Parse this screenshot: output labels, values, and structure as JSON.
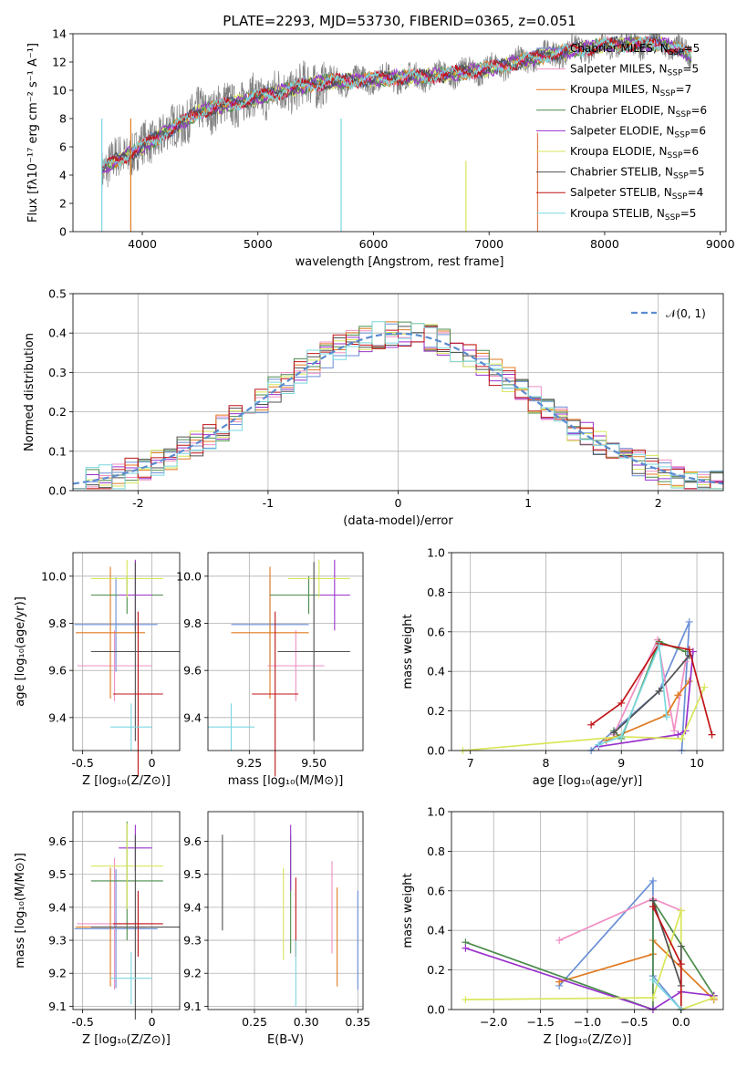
{
  "colors": [
    "#6a8fd6",
    "#f08fc4",
    "#e07a20",
    "#4c8c4c",
    "#9932cc",
    "#d8e65a",
    "#505050",
    "#c01418",
    "#7ad8e0"
  ],
  "chart_data": [
    {
      "id": "spectrum",
      "type": "line",
      "title": "PLATE=2293, MJD=53730, FIBERID=0365, z=0.051",
      "xlabel": "wavelength [Angstrom, rest frame]",
      "ylabel": "Flux [fλ10⁻¹⁷ erg cm⁻² s⁻¹ A⁻¹]",
      "xlim": [
        3400,
        9050
      ],
      "ylim": [
        0,
        14
      ],
      "xticks": [
        4000,
        5000,
        6000,
        7000,
        8000,
        9000
      ],
      "yticks": [
        0,
        2,
        4,
        6,
        8,
        10,
        12,
        14
      ],
      "data_envelope": {
        "x": [
          3650,
          4000,
          4500,
          5000,
          5500,
          6000,
          6500,
          7000,
          7500,
          8000,
          8500,
          8750
        ],
        "y": [
          4.5,
          6.0,
          8.5,
          9.5,
          10.5,
          10.8,
          11.0,
          11.5,
          12.5,
          13.2,
          13.3,
          12.5
        ]
      },
      "legend": [
        {
          "label": "Chabrier MILES, N",
          "sub": "SSP",
          "tail": "=5"
        },
        {
          "label": "Salpeter MILES, N",
          "sub": "SSP",
          "tail": "=5"
        },
        {
          "label": "Kroupa MILES, N",
          "sub": "SSP",
          "tail": "=7"
        },
        {
          "label": "Chabrier ELODIE, N",
          "sub": "SSP",
          "tail": "=6"
        },
        {
          "label": "Salpeter ELODIE, N",
          "sub": "SSP",
          "tail": "=6"
        },
        {
          "label": "Kroupa ELODIE, N",
          "sub": "SSP",
          "tail": "=6"
        },
        {
          "label": "Chabrier STELIB, N",
          "sub": "SSP",
          "tail": "=5"
        },
        {
          "label": "Salpeter STELIB, N",
          "sub": "SSP",
          "tail": "=4"
        },
        {
          "label": "Kroupa STELIB, N",
          "sub": "SSP",
          "tail": "=5"
        }
      ]
    },
    {
      "id": "residuals",
      "type": "histogram",
      "xlabel": "(data-model)/error",
      "ylabel": "Normed distribution",
      "xlim": [
        -2.5,
        2.5
      ],
      "ylim": [
        0,
        0.5
      ],
      "xticks": [
        -2,
        -1,
        0,
        1,
        2
      ],
      "yticks": [
        0.0,
        0.1,
        0.2,
        0.3,
        0.4,
        0.5
      ],
      "bins": 50,
      "legend": "𝒩(0, 1)",
      "gaussian": {
        "mu": 0,
        "sigma": 1
      }
    },
    {
      "id": "age_vs_Z",
      "type": "errorbar",
      "xlabel": "Z [log₁₀(Z/Z⊙)]",
      "ylabel": "age  [log₁₀(age/yr)]",
      "xlim": [
        -0.57,
        0.2
      ],
      "ylim": [
        9.26,
        10.1
      ],
      "xticks": [
        -0.5,
        0.0
      ],
      "yticks": [
        9.4,
        9.6,
        9.8,
        10.0
      ],
      "points": [
        {
          "x": -0.26,
          "xerr": 0.3,
          "y": 9.795,
          "yerr": 0.2
        },
        {
          "x": -0.27,
          "xerr": 0.27,
          "y": 9.62,
          "yerr": 0.15
        },
        {
          "x": -0.3,
          "xerr": 0.25,
          "y": 9.76,
          "yerr": 0.28
        },
        {
          "x": -0.18,
          "xerr": 0.26,
          "y": 9.92,
          "yerr": 0.08
        },
        {
          "x": -0.12,
          "xerr": 0.12,
          "y": 9.92,
          "yerr": 0.15
        },
        {
          "x": -0.18,
          "xerr": 0.26,
          "y": 9.99,
          "yerr": 0.08
        },
        {
          "x": -0.12,
          "xerr": 0.32,
          "y": 9.68,
          "yerr": 0.38
        },
        {
          "x": -0.1,
          "xerr": 0.18,
          "y": 9.5,
          "yerr": 0.35
        },
        {
          "x": -0.15,
          "xerr": 0.15,
          "y": 9.36,
          "yerr": 0.1
        }
      ]
    },
    {
      "id": "age_vs_mass",
      "type": "errorbar",
      "xlabel": "mass [log₁₀(M/M⊙)]",
      "ylabel": "",
      "xlim": [
        9.09,
        9.69
      ],
      "ylim": [
        9.26,
        10.1
      ],
      "xticks": [
        9.25,
        9.5
      ],
      "xticklabels": [
        "9.25",
        "9.50"
      ],
      "yticks": [
        9.4,
        9.6,
        9.8,
        10.0
      ],
      "points": [
        {
          "x": 9.33,
          "xerr": 0.15,
          "y": 9.795,
          "yerr": 0.2
        },
        {
          "x": 9.43,
          "xerr": 0.11,
          "y": 9.62,
          "yerr": 0.15
        },
        {
          "x": 9.33,
          "xerr": 0.15,
          "y": 9.76,
          "yerr": 0.28
        },
        {
          "x": 9.48,
          "xerr": 0.15,
          "y": 9.92,
          "yerr": 0.08
        },
        {
          "x": 9.58,
          "xerr": 0.06,
          "y": 9.92,
          "yerr": 0.15
        },
        {
          "x": 9.52,
          "xerr": 0.12,
          "y": 9.99,
          "yerr": 0.08
        },
        {
          "x": 9.5,
          "xerr": 0.14,
          "y": 9.68,
          "yerr": 0.38
        },
        {
          "x": 9.35,
          "xerr": 0.09,
          "y": 9.5,
          "yerr": 0.35
        },
        {
          "x": 9.18,
          "xerr": 0.09,
          "y": 9.36,
          "yerr": 0.1
        }
      ]
    },
    {
      "id": "weight_vs_age",
      "type": "line",
      "xlabel": "age  [log₁₀(age/yr)]",
      "ylabel": "mass weight",
      "xlim": [
        6.75,
        10.35
      ],
      "ylim": [
        0,
        1
      ],
      "xticks": [
        7,
        8,
        9,
        10
      ],
      "yticks": [
        0.0,
        0.2,
        0.4,
        0.6,
        0.8,
        1.0
      ],
      "series": [
        {
          "x": [
            8.6,
            9.5,
            9.9,
            9.8
          ],
          "y": [
            0.0,
            0.3,
            0.65,
            0.0
          ]
        },
        {
          "x": [
            8.9,
            9.48,
            9.7,
            9.85
          ],
          "y": [
            0.08,
            0.56,
            0.1,
            0.45
          ]
        },
        {
          "x": [
            8.8,
            9.6,
            9.75,
            9.9
          ],
          "y": [
            0.05,
            0.18,
            0.28,
            0.35
          ]
        },
        {
          "x": [
            8.9,
            9.0,
            9.5,
            9.85
          ],
          "y": [
            0.1,
            0.06,
            0.55,
            0.5
          ]
        },
        {
          "x": [
            8.7,
            9.75,
            9.85,
            9.95
          ],
          "y": [
            0.02,
            0.08,
            0.1,
            0.5
          ]
        },
        {
          "x": [
            6.9,
            9.0,
            9.8,
            10.1
          ],
          "y": [
            0.0,
            0.07,
            0.06,
            0.32
          ]
        },
        {
          "x": [
            8.9,
            9.5,
            9.9
          ],
          "y": [
            0.09,
            0.3,
            0.48
          ]
        },
        {
          "x": [
            8.6,
            9.0,
            9.5,
            9.9,
            10.2
          ],
          "y": [
            0.13,
            0.24,
            0.54,
            0.51,
            0.08
          ]
        },
        {
          "x": [
            8.7,
            9.0,
            9.5,
            9.6
          ],
          "y": [
            0.03,
            0.07,
            0.53,
            0.17
          ]
        }
      ]
    },
    {
      "id": "mass_vs_Z",
      "type": "errorbar",
      "xlabel": "Z [log₁₀(Z/Z⊙)]",
      "ylabel": "mass [log₁₀(M/M⊙)]",
      "xlim": [
        -0.57,
        0.2
      ],
      "ylim": [
        9.09,
        9.69
      ],
      "xticks": [
        -0.5,
        0.0
      ],
      "yticks": [
        9.1,
        9.2,
        9.3,
        9.4,
        9.5,
        9.6
      ],
      "points": [
        {
          "x": -0.26,
          "xerr": 0.3,
          "y": 9.335,
          "yerr": 0.18
        },
        {
          "x": -0.27,
          "xerr": 0.27,
          "y": 9.35,
          "yerr": 0.2
        },
        {
          "x": -0.3,
          "xerr": 0.25,
          "y": 9.34,
          "yerr": 0.18
        },
        {
          "x": -0.18,
          "xerr": 0.26,
          "y": 9.48,
          "yerr": 0.18
        },
        {
          "x": -0.12,
          "xerr": 0.12,
          "y": 9.58,
          "yerr": 0.07
        },
        {
          "x": -0.18,
          "xerr": 0.26,
          "y": 9.525,
          "yerr": 0.13
        },
        {
          "x": -0.12,
          "xerr": 0.32,
          "y": 9.34,
          "yerr": 0.28
        },
        {
          "x": -0.1,
          "xerr": 0.18,
          "y": 9.35,
          "yerr": 0.1
        },
        {
          "x": -0.15,
          "xerr": 0.15,
          "y": 9.185,
          "yerr": 0.08
        }
      ]
    },
    {
      "id": "mass_vs_ebv",
      "type": "errorbar",
      "xlabel": "E(B-V)",
      "ylabel": "",
      "xlim": [
        0.205,
        0.355
      ],
      "ylim": [
        9.09,
        9.69
      ],
      "xticks": [
        0.25,
        0.3,
        0.35
      ],
      "xticklabels": [
        "0.25",
        "0.30",
        "0.35"
      ],
      "yticks": [
        9.1,
        9.2,
        9.3,
        9.4,
        9.5,
        9.6
      ],
      "points": [
        {
          "x": 0.35,
          "xerr": 0,
          "y": 9.3,
          "yerr": 0.15
        },
        {
          "x": 0.325,
          "xerr": 0,
          "y": 9.4,
          "yerr": 0.14
        },
        {
          "x": 0.33,
          "xerr": 0,
          "y": 9.31,
          "yerr": 0.15
        },
        {
          "x": 0.285,
          "xerr": 0,
          "y": 9.44,
          "yerr": 0.18
        },
        {
          "x": 0.285,
          "xerr": 0,
          "y": 9.55,
          "yerr": 0.1
        },
        {
          "x": 0.278,
          "xerr": 0,
          "y": 9.38,
          "yerr": 0.14
        },
        {
          "x": 0.219,
          "xerr": 0,
          "y": 9.475,
          "yerr": 0.145
        },
        {
          "x": 0.29,
          "xerr": 0,
          "y": 9.37,
          "yerr": 0.12
        },
        {
          "x": 0.29,
          "xerr": 0,
          "y": 9.2,
          "yerr": 0.1
        }
      ]
    },
    {
      "id": "weight_vs_Z",
      "type": "line",
      "xlabel": "Z [log₁₀(Z/Z⊙)]",
      "ylabel": "mass weight",
      "xlim": [
        -2.45,
        0.45
      ],
      "ylim": [
        0,
        1
      ],
      "xticks": [
        -2.0,
        -1.5,
        -1.0,
        -0.5,
        0.0
      ],
      "xticklabels": [
        "−2.0",
        "−1.5",
        "−1.0",
        "−0.5",
        "0.0"
      ],
      "yticks": [
        0.0,
        0.2,
        0.4,
        0.6,
        0.8,
        1.0
      ],
      "series": [
        {
          "x": [
            -1.3,
            -0.3,
            -0.3,
            0.0
          ],
          "y": [
            0.12,
            0.65,
            0.17,
            0.0
          ]
        },
        {
          "x": [
            -1.3,
            -0.3,
            0.0
          ],
          "y": [
            0.35,
            0.56,
            0.5
          ]
        },
        {
          "x": [
            -1.3,
            -0.3,
            -0.3,
            0.35
          ],
          "y": [
            0.14,
            0.28,
            0.35,
            0.05
          ]
        },
        {
          "x": [
            -2.3,
            -0.3,
            -0.3,
            0.35
          ],
          "y": [
            0.34,
            0.0,
            0.55,
            0.07
          ]
        },
        {
          "x": [
            -2.3,
            -0.3,
            0.0,
            0.35
          ],
          "y": [
            0.31,
            0.0,
            0.09,
            0.07
          ]
        },
        {
          "x": [
            -2.3,
            -0.3,
            0.0,
            0.0,
            0.35
          ],
          "y": [
            0.05,
            0.06,
            0.5,
            0.0,
            0.06
          ]
        },
        {
          "x": [
            -0.3,
            0.0,
            0.0
          ],
          "y": [
            0.55,
            0.12,
            0.32
          ]
        },
        {
          "x": [
            -0.3,
            0.0,
            0.0
          ],
          "y": [
            0.52,
            0.23,
            0.0
          ]
        },
        {
          "x": [
            -0.3,
            0.0
          ],
          "y": [
            0.15,
            0.0
          ]
        }
      ]
    }
  ]
}
